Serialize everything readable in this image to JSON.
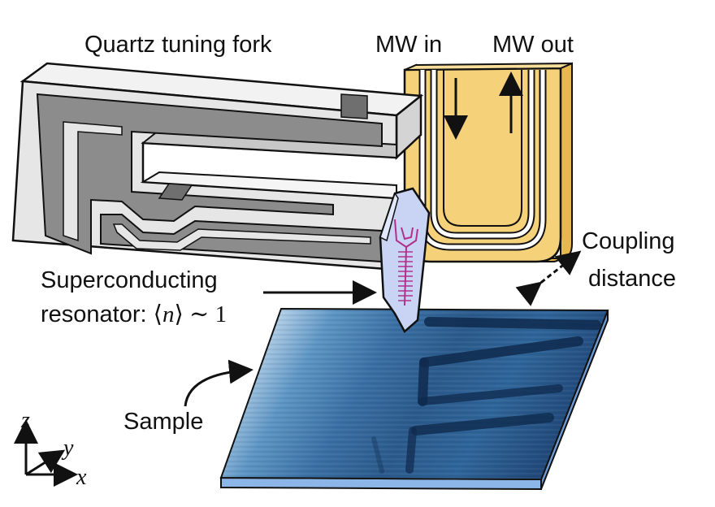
{
  "labels": {
    "tuning_fork": "Quartz tuning fork",
    "mw_in": "MW in",
    "mw_out": "MW out",
    "coupling_line1": "Coupling",
    "coupling_line2": "distance",
    "resonator_line1": "Superconducting",
    "resonator_line2_prefix": "resonator: ",
    "resonator_math_open": "⟨",
    "resonator_math_var": "n",
    "resonator_math_close": "⟩ ∼ 1",
    "sample": "Sample"
  },
  "axes": {
    "z": "z",
    "y": "y",
    "x": "x"
  },
  "colors": {
    "gold": "#f5d27a",
    "gold_dark": "#e8b84f",
    "fork_light": "#e6e6e6",
    "fork_dark": "#8c8c8c",
    "sample_light": "#dbe9f4",
    "sample_mid": "#4d82b2",
    "sample_dark": "#15375f",
    "sample_edge": "#8cb6e8",
    "chip": "#c9d4f4",
    "chip_trace": "#b0308c"
  }
}
